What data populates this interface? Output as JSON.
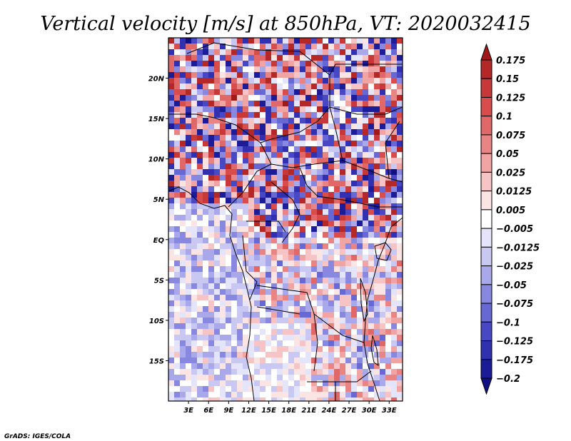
{
  "chart_data": {
    "type": "heatmap",
    "title": "Vertical velocity [m/s] at 850hPa, VT: 2020032415",
    "x_ticks": [
      "3E",
      "6E",
      "9E",
      "12E",
      "15E",
      "18E",
      "21E",
      "24E",
      "27E",
      "30E",
      "33E"
    ],
    "y_ticks": [
      "20N",
      "15N",
      "10N",
      "5N",
      "EQ",
      "5S",
      "10S",
      "15S"
    ],
    "xlim": [
      0,
      35
    ],
    "ylim": [
      -20,
      25
    ],
    "colorbar": {
      "labels": [
        "0.175",
        "0.15",
        "0.125",
        "0.1",
        "0.075",
        "0.05",
        "0.025",
        "0.0125",
        "0.005",
        "−0.005",
        "−0.0125",
        "−0.025",
        "−0.05",
        "−0.075",
        "−0.1",
        "−0.125",
        "−0.175",
        "−0.2"
      ],
      "colors": [
        "#a01818",
        "#b52828",
        "#c83838",
        "#d84c4c",
        "#e06868",
        "#e88484",
        "#f0a4a4",
        "#f6c4c4",
        "#fbe4e4",
        "#ffffff",
        "#e4e4fa",
        "#c8c8f2",
        "#a8a8ea",
        "#8888e0",
        "#6868d4",
        "#4848c4",
        "#3030b0",
        "#1c1c98",
        "#101080"
      ]
    }
  },
  "credit": "GrADS: IGES/COLA"
}
